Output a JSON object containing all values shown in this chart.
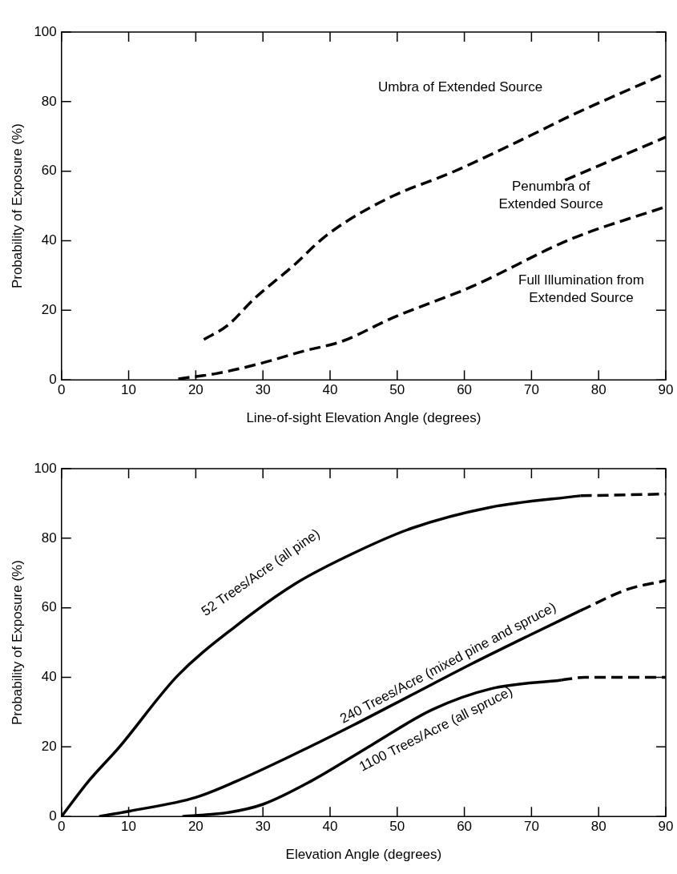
{
  "chart_data": [
    {
      "type": "line",
      "xlabel": "Line-of-sight Elevation Angle (degrees)",
      "ylabel": "Probability of Exposure (%)",
      "xlim": [
        0,
        90
      ],
      "ylim": [
        0,
        100
      ],
      "xticks": [
        0,
        10,
        20,
        30,
        40,
        50,
        60,
        70,
        80,
        90
      ],
      "yticks": [
        0,
        20,
        40,
        60,
        80,
        100
      ],
      "grid": false,
      "legend": false,
      "marker": "none",
      "line_style": "dashed",
      "series": [
        {
          "name": "Umbra of Extended Source",
          "color": "#000000",
          "x": [
            21.2,
            24.7,
            28.8,
            34.7,
            38.8,
            42.9,
            49.4,
            58.2,
            70,
            75.9,
            90
          ],
          "values": [
            11.6,
            15.6,
            23.5,
            33.1,
            40.5,
            46.1,
            52.9,
            59.7,
            70.4,
            76,
            88.1
          ]
        },
        {
          "name": "Penumbra of Extended Source",
          "color": "#000000",
          "x": [
            75,
            90
          ],
          "values": [
            57.4,
            69.8
          ]
        },
        {
          "name": "Full Illumination from Extended Source",
          "color": "#000000",
          "x": [
            17.4,
            23,
            30,
            35.9,
            41.8,
            49.4,
            61.2,
            75.9,
            90
          ],
          "values": [
            0.3,
            1.8,
            4.9,
            8.2,
            11.1,
            17.9,
            26.9,
            40.5,
            49.8
          ]
        }
      ]
    },
    {
      "type": "line",
      "xlabel": "Elevation Angle (degrees)",
      "ylabel": "Probability of Exposure (%)",
      "xlim": [
        0,
        90
      ],
      "ylim": [
        0,
        100
      ],
      "xticks": [
        0,
        10,
        20,
        30,
        40,
        50,
        60,
        70,
        80,
        90
      ],
      "yticks": [
        0,
        20,
        40,
        60,
        80,
        100
      ],
      "grid": false,
      "legend": false,
      "marker": "none",
      "line_style": "solid",
      "series": [
        {
          "name": "52 Trees/Acre (all pine)",
          "color": "#000000",
          "x": [
            0,
            4.1,
            8.5,
            17.3,
            26,
            34.8,
            43.5,
            52.2,
            63.9,
            77.3
          ],
          "values": [
            0,
            10.3,
            19.7,
            40.5,
            54.8,
            66.9,
            75.7,
            82.9,
            88.9,
            92.2
          ]
        },
        {
          "color": "#000000",
          "line_style": "dashed",
          "x": [
            77.3,
            90
          ],
          "values": [
            92.2,
            92.7
          ]
        },
        {
          "name": "240 Trees/Acre (mixed pine and spruce)",
          "color": "#000000",
          "x": [
            5.6,
            10,
            20,
            26,
            34.8,
            43.5,
            52.2,
            61,
            69.7,
            77.3
          ],
          "values": [
            0,
            1.5,
            5.5,
            10.1,
            18,
            26.3,
            35,
            43.8,
            52.1,
            59.2
          ]
        },
        {
          "color": "#000000",
          "line_style": "dashed",
          "x": [
            77.3,
            84.3,
            90
          ],
          "values": [
            59.2,
            65.3,
            67.8
          ]
        },
        {
          "name": "1100 Trees/Acre (all spruce)",
          "color": "#000000",
          "x": [
            18,
            25,
            30,
            37.1,
            46.4,
            55.2,
            63.9,
            74.4
          ],
          "values": [
            0,
            1.2,
            3.5,
            10.1,
            20.8,
            30.7,
            36.7,
            39.2
          ]
        },
        {
          "color": "#000000",
          "line_style": "dashed",
          "x": [
            74.4,
            77.9,
            90
          ],
          "values": [
            39.2,
            40,
            40
          ]
        }
      ]
    }
  ]
}
